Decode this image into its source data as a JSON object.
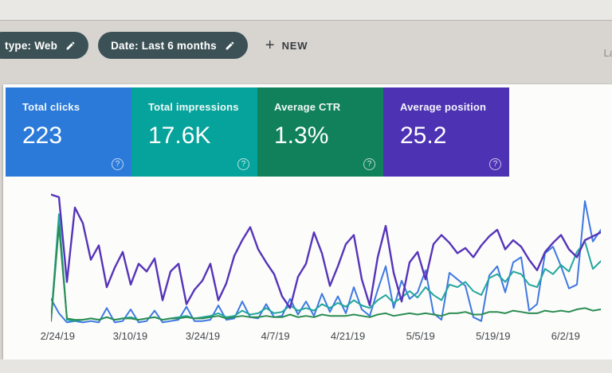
{
  "filter_bar": {
    "chips": [
      {
        "label": "type: Web"
      },
      {
        "label": "Date: Last 6 months"
      }
    ],
    "new_button": {
      "plus_glyph": "+",
      "label": "NEW"
    },
    "right_clipped_text": "La"
  },
  "icons": {
    "help_glyph": "?"
  },
  "metric_cards": [
    {
      "label": "Total clicks",
      "value": "223",
      "color": "#2b7ad9"
    },
    {
      "label": "Total impressions",
      "value": "17.6K",
      "color": "#05a39b"
    },
    {
      "label": "Average CTR",
      "value": "1.3%",
      "color": "#10815a"
    },
    {
      "label": "Average position",
      "value": "25.2",
      "color": "#4d33b4"
    }
  ],
  "chart_data": {
    "type": "line",
    "title": "",
    "xlabel": "",
    "ylabel": "",
    "grid": false,
    "legend": "none",
    "y_axis": "not shown; each series independently scaled, values are relative height 0-100",
    "x_tick_labels": [
      "2/24/19",
      "3/10/19",
      "3/24/19",
      "4/7/19",
      "4/21/19",
      "5/5/19",
      "5/19/19",
      "6/2/19"
    ],
    "tick_start_pct": 1.2,
    "tick_spacing_pct": 13.2,
    "series": [
      {
        "id": "clicks",
        "name": "Clicks",
        "color": "#3e79e1",
        "width": 2,
        "values": [
          19,
          8,
          1,
          2,
          1,
          2,
          1,
          12,
          1,
          2,
          11,
          1,
          2,
          10,
          1,
          2,
          3,
          13,
          2,
          2,
          3,
          14,
          3,
          4,
          17,
          5,
          4,
          15,
          5,
          6,
          19,
          7,
          17,
          6,
          23,
          9,
          21,
          8,
          28,
          11,
          6,
          26,
          44,
          12,
          33,
          19,
          24,
          41,
          8,
          3,
          39,
          34,
          29,
          5,
          2,
          37,
          44,
          24,
          47,
          51,
          10,
          15,
          54,
          59,
          44,
          27,
          30,
          94,
          63,
          72
        ]
      },
      {
        "id": "impressions",
        "name": "Impressions",
        "color": "#23a69e",
        "width": 2,
        "values": [
          3,
          84,
          3,
          2,
          3,
          4,
          3,
          5,
          3,
          4,
          5,
          3,
          4,
          5,
          3,
          4,
          5,
          6,
          4,
          5,
          6,
          8,
          5,
          6,
          10,
          7,
          8,
          12,
          8,
          9,
          14,
          10,
          12,
          10,
          15,
          12,
          16,
          13,
          18,
          14,
          12,
          18,
          22,
          16,
          20,
          25,
          20,
          28,
          22,
          18,
          30,
          28,
          32,
          25,
          22,
          35,
          38,
          32,
          40,
          38,
          30,
          28,
          42,
          38,
          45,
          40,
          55,
          63,
          42,
          48
        ]
      },
      {
        "id": "ctr",
        "name": "CTR",
        "color": "#2b8d52",
        "width": 2,
        "values": [
          2,
          75,
          4,
          3,
          3,
          4,
          3,
          5,
          3,
          4,
          4,
          3,
          4,
          5,
          3,
          4,
          4,
          5,
          4,
          4,
          5,
          6,
          4,
          5,
          6,
          5,
          5,
          6,
          5,
          5,
          7,
          5,
          6,
          5,
          7,
          6,
          6,
          6,
          7,
          6,
          5,
          7,
          8,
          6,
          7,
          8,
          7,
          8,
          7,
          6,
          8,
          8,
          9,
          7,
          7,
          9,
          9,
          8,
          10,
          9,
          8,
          8,
          10,
          9,
          10,
          9,
          11,
          12,
          10,
          11
        ]
      },
      {
        "id": "position",
        "name": "Position",
        "color": "#5634b8",
        "width": 2.4,
        "values": [
          99,
          97,
          32,
          89,
          77,
          49,
          60,
          28,
          43,
          55,
          30,
          46,
          40,
          50,
          18,
          40,
          46,
          15,
          26,
          33,
          46,
          18,
          31,
          52,
          64,
          74,
          57,
          47,
          38,
          21,
          12,
          36,
          46,
          70,
          54,
          29,
          44,
          61,
          68,
          34,
          14,
          51,
          75,
          39,
          17,
          47,
          55,
          34,
          61,
          68,
          62,
          54,
          58,
          51,
          60,
          67,
          72,
          57,
          64,
          59,
          49,
          41,
          55,
          62,
          68,
          57,
          51,
          64,
          67,
          70
        ]
      }
    ]
  }
}
